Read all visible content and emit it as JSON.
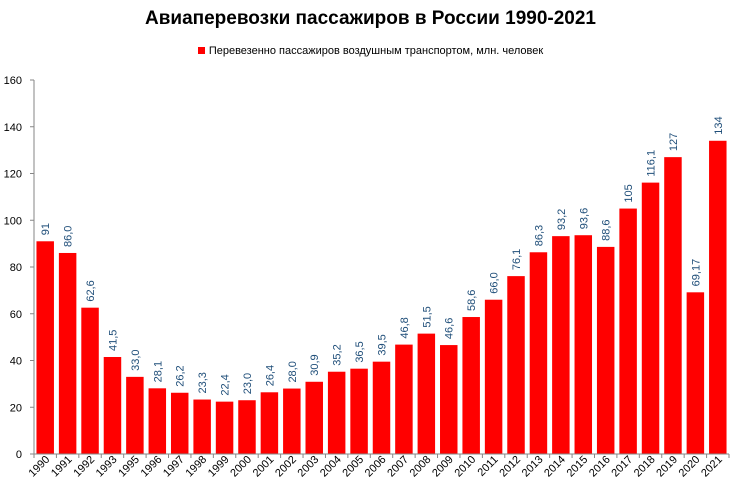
{
  "chart_data": {
    "type": "bar",
    "title": "Авиаперевозки пассажиров в России 1990-2021",
    "legend_position": "top",
    "grid": false,
    "ylim": [
      0,
      160
    ],
    "yticks": [
      "0",
      "20",
      "40",
      "60",
      "80",
      "100",
      "120",
      "140",
      "160"
    ],
    "categories": [
      "1990",
      "1991",
      "1992",
      "1993",
      "1995",
      "1996",
      "1997",
      "1998",
      "1999",
      "2000",
      "2001",
      "2002",
      "2003",
      "2004",
      "2005",
      "2006",
      "2007",
      "2008",
      "2009",
      "2010",
      "2011",
      "2012",
      "2013",
      "2014",
      "2015",
      "2016",
      "2017",
      "2018",
      "2019",
      "2020",
      "2021"
    ],
    "series": [
      {
        "name": "Перевезенно пассажиров воздушным транспортом, млн. человек",
        "color": "#ff0000",
        "label_color": "#1f4e79",
        "values": [
          91,
          86.0,
          62.6,
          41.5,
          33.0,
          28.1,
          26.2,
          23.3,
          22.4,
          23.0,
          26.4,
          28.0,
          30.9,
          35.2,
          36.5,
          39.5,
          46.8,
          51.5,
          46.6,
          58.6,
          66.0,
          76.1,
          86.3,
          93.2,
          93.6,
          88.6,
          105,
          116.1,
          127,
          69.17,
          134
        ],
        "labels": [
          "91",
          "86,0",
          "62,6",
          "41,5",
          "33,0",
          "28,1",
          "26,2",
          "23,3",
          "22,4",
          "23,0",
          "26,4",
          "28,0",
          "30,9",
          "35,2",
          "36,5",
          "39,5",
          "46,8",
          "51,5",
          "46,6",
          "58,6",
          "66,0",
          "76,1",
          "86,3",
          "93,2",
          "93,6",
          "88,6",
          "105",
          "116,1",
          "127",
          "69,17",
          "134"
        ]
      }
    ]
  }
}
